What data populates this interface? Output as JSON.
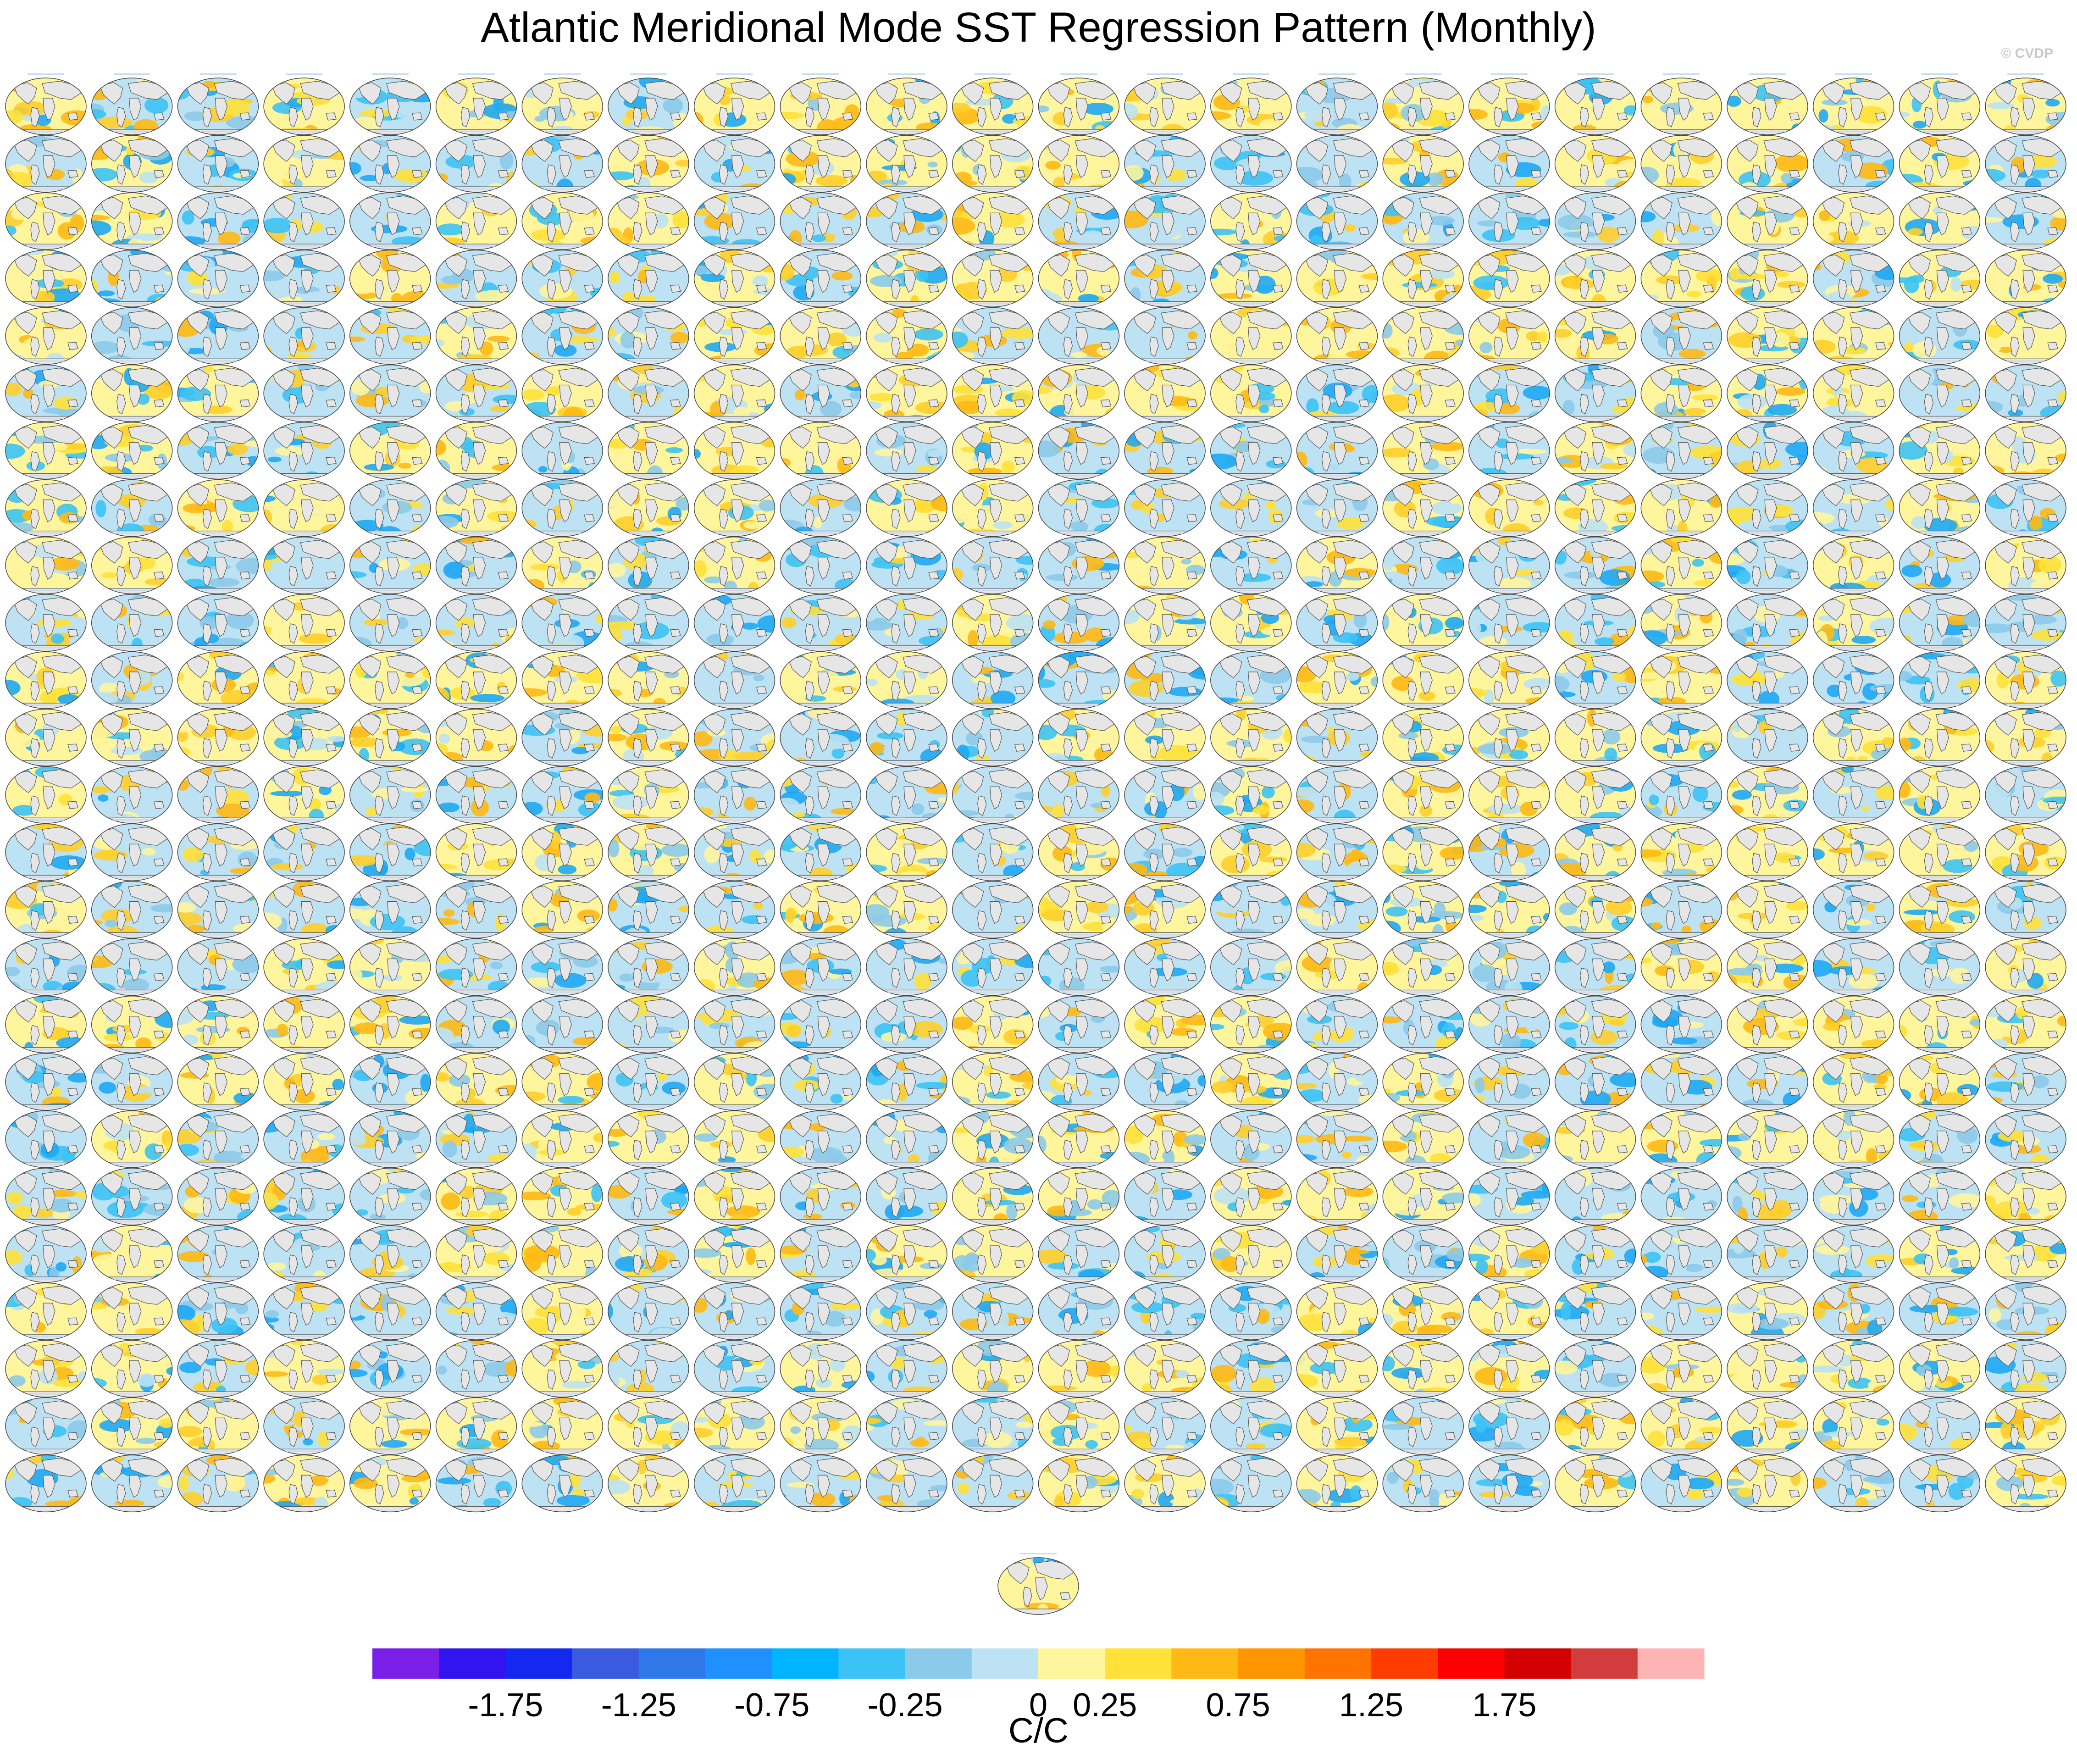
{
  "title": "Atlantic Meridional Mode SST Regression Pattern (Monthly)",
  "watermark": "© CVDP",
  "chart_data": {
    "type": "heatmap",
    "description_kind": "small-multiple global SST regression maps",
    "grid": {
      "rows": 25,
      "cols": 24,
      "extra_panels": 1
    },
    "colorbar": {
      "colors": [
        "#7a1fe8",
        "#3214f0",
        "#1428f0",
        "#3a5ae0",
        "#2e78ea",
        "#1e90ff",
        "#00b4ff",
        "#3cc3f5",
        "#8ccaea",
        "#bde2f4",
        "#fff59c",
        "#ffe13a",
        "#ffb914",
        "#ff9600",
        "#ff7300",
        "#ff3c00",
        "#ff0000",
        "#d20000",
        "#d23c3c",
        "#ffb4b4"
      ],
      "tick_labels": [
        "-1.75",
        "-1.25",
        "-0.75",
        "-0.25",
        "0",
        "0.25",
        "0.75",
        "1.25",
        "1.75"
      ],
      "tick_boundary_index": [
        2,
        4,
        6,
        8,
        10,
        11,
        13,
        15,
        17
      ],
      "units": "C/C"
    },
    "map_palette": {
      "ocean_warm": [
        "#fff59c",
        "#ffe13a",
        "#ffcf2a",
        "#ffb914"
      ],
      "ocean_cool": [
        "#bde2f4",
        "#8ccaea",
        "#3cc3f5",
        "#1ea8f5"
      ],
      "land": "#e6e6e6",
      "coast": "#555555"
    }
  }
}
